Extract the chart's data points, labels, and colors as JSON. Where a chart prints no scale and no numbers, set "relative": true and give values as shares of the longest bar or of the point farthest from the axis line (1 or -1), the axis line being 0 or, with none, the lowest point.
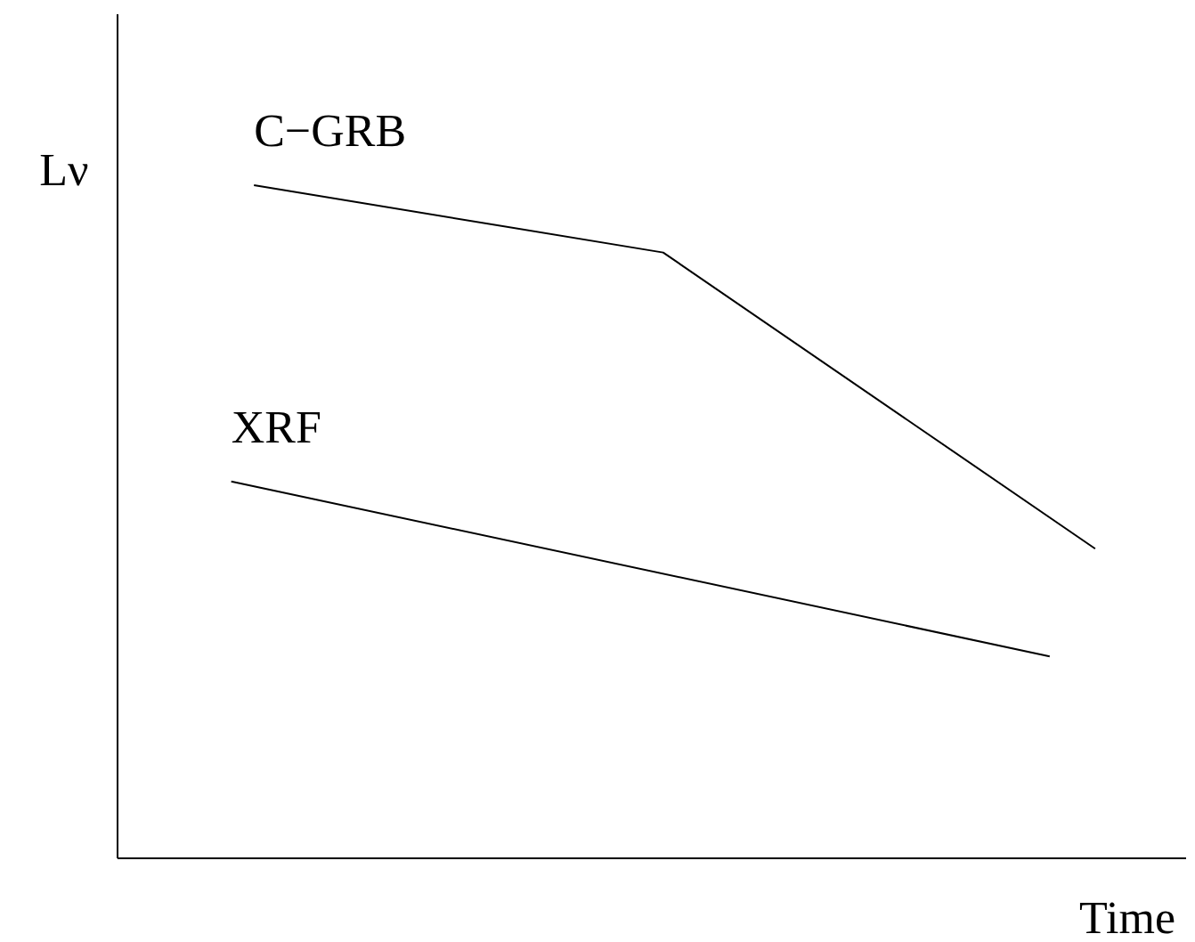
{
  "chart_data": {
    "type": "line",
    "relative": true,
    "xlabel": "Time",
    "ylabel": "Lν",
    "marker": "none",
    "line_style": "solid",
    "categories": [
      null,
      null,
      null,
      null,
      null,
      null,
      null,
      null,
      null,
      null,
      null,
      null,
      null,
      null,
      null,
      null,
      null,
      null,
      null,
      null,
      null,
      null,
      null,
      null,
      null,
      null,
      null,
      null,
      null,
      null,
      null,
      null,
      null,
      null,
      null,
      null,
      null,
      null,
      null,
      null,
      null,
      null,
      null,
      null,
      null,
      null,
      null,
      null
    ],
    "series": [
      {
        "name": "C−GRB",
        "color": "#000000",
        "values": [
          null,
          null,
          null,
          null,
          null,
          null,
          1,
          null,
          null,
          null,
          null,
          null,
          null,
          null,
          null,
          null,
          null,
          null,
          null,
          null,
          null,
          null,
          null,
          null,
          0.9,
          null,
          null,
          null,
          null,
          null,
          null,
          null,
          null,
          null,
          null,
          null,
          null,
          null,
          null,
          null,
          null,
          null,
          null,
          0.46,
          null,
          null,
          null,
          null
        ]
      },
      {
        "name": "XRF",
        "color": "#000000",
        "values": [
          null,
          null,
          null,
          null,
          null,
          0.56,
          null,
          null,
          null,
          null,
          null,
          null,
          null,
          null,
          null,
          null,
          null,
          null,
          null,
          null,
          null,
          null,
          null,
          null,
          null,
          null,
          null,
          null,
          null,
          null,
          null,
          null,
          null,
          null,
          null,
          null,
          null,
          null,
          null,
          null,
          null,
          0.3,
          null,
          null,
          null,
          null,
          null,
          null
        ]
      }
    ]
  }
}
